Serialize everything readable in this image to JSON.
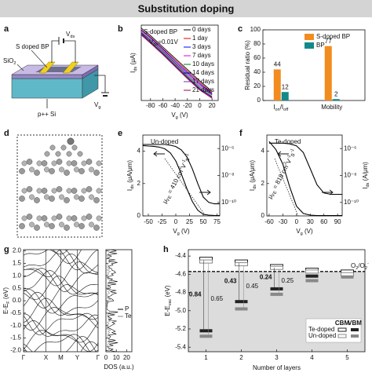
{
  "title": "Substitution doping",
  "panel_labels": [
    "a",
    "b",
    "c",
    "d",
    "e",
    "f",
    "g",
    "h"
  ],
  "a": {
    "doped": "S doped BP",
    "oxide": [
      "SiO",
      {
        "sub": "2"
      }
    ],
    "substrate": "p++ Si",
    "vds": [
      "V",
      {
        "sub": "ds"
      }
    ],
    "vg": [
      "V",
      {
        "sub": "g"
      }
    ]
  },
  "chart_data": [
    {
      "type": "line",
      "x": [
        -95,
        -80,
        -60,
        -40,
        -20,
        0,
        20
      ],
      "xlim": [
        -95,
        30
      ],
      "xticks": [
        -80,
        -60,
        -40,
        -20,
        0,
        20
      ],
      "ylim": [
        0,
        10
      ],
      "xlabel": [
        "V",
        {
          "sub": "g"
        },
        " (V)"
      ],
      "ylabel": [
        "I",
        {
          "sub": "ds"
        },
        " (μA)"
      ],
      "annotations": [
        "S-doped BP",
        [
          "V",
          {
            "sub": "ds"
          },
          "=0.01V"
        ]
      ],
      "series": [
        {
          "name": "0 days",
          "color": "#000000",
          "values": [
            9.6,
            8.6,
            7.1,
            5.6,
            4.1,
            2.6,
            1.2
          ]
        },
        {
          "name": "1 day",
          "color": "#e00000",
          "values": [
            9.4,
            8.4,
            6.9,
            5.4,
            3.9,
            2.4,
            1.0
          ]
        },
        {
          "name": "3 days",
          "color": "#0000ff",
          "values": [
            9.3,
            8.3,
            6.8,
            5.2,
            3.7,
            2.2,
            0.9
          ]
        },
        {
          "name": "7 days",
          "color": "#e000e0",
          "values": [
            9.1,
            8.1,
            6.6,
            5.0,
            3.5,
            2.0,
            0.8
          ]
        },
        {
          "name": "10 days",
          "color": "#008000",
          "values": [
            9.0,
            8.0,
            6.5,
            4.9,
            3.3,
            1.8,
            0.7
          ]
        },
        {
          "name": "14 days",
          "color": "#000080",
          "values": [
            8.9,
            7.8,
            6.3,
            4.7,
            3.1,
            1.6,
            0.5
          ]
        },
        {
          "name": "17 days",
          "color": "#7030a0",
          "values": [
            8.8,
            7.7,
            6.2,
            4.6,
            3.0,
            1.5,
            0.4
          ]
        },
        {
          "name": "21 days",
          "color": "#a0003a",
          "values": [
            8.7,
            7.6,
            6.1,
            4.5,
            2.9,
            1.4,
            0.3
          ]
        }
      ]
    },
    {
      "type": "bar",
      "categories": [
        [
          "I",
          {
            "sub": "on"
          },
          "/I",
          {
            "sub": "off"
          }
        ],
        "Mobility"
      ],
      "ylim": [
        0,
        100
      ],
      "yticks": [
        0,
        20,
        40,
        60,
        80,
        100
      ],
      "ylabel": "Residual ratio (%)",
      "series": [
        {
          "name": "S-doped BP",
          "color": "#f28c1e",
          "values": [
            44,
            77
          ]
        },
        {
          "name": "BP",
          "color": "#138a8a",
          "values": [
            12,
            2
          ]
        }
      ]
    },
    {
      "type": "transfer",
      "annotation": "Un-doped",
      "mobility": [
        "μ",
        {
          "sub": "FE"
        },
        " = 410 cm",
        {
          "sup": "2"
        },
        "V",
        {
          "sup": "-1"
        },
        "s",
        {
          "sup": "-1"
        }
      ],
      "x": [
        -60,
        -50,
        -40,
        -30,
        -20,
        -10,
        0,
        10,
        20,
        30,
        40,
        50,
        60,
        70,
        80
      ],
      "xlim": [
        -60,
        80
      ],
      "xticks": [
        -50,
        -25,
        0,
        25,
        50,
        75
      ],
      "ylim": [
        0,
        5
      ],
      "yticks": [
        0,
        2,
        4
      ],
      "y2lim": [
        -11,
        -5
      ],
      "y2ticks": [
        {
          "value": -6,
          "label": "10⁻⁶"
        },
        {
          "value": -8,
          "label": "10⁻⁸"
        },
        {
          "value": -10,
          "label": "10⁻¹⁰"
        }
      ],
      "xlabel": [
        "V",
        {
          "sub": "g"
        },
        " (V)"
      ],
      "ylabel": [
        "I",
        {
          "sub": "ds"
        },
        " (μA/μm)"
      ],
      "series": [
        {
          "color": "#000000",
          "values": [
            4.35,
            4.32,
            4.3,
            4.25,
            4.15,
            3.9,
            3.4,
            2.6,
            1.7,
            0.9,
            0.35,
            0.1,
            0.05,
            0.03,
            0.02
          ]
        },
        {
          "color": "#000000",
          "axis": "y2",
          "values": [
            -5.7,
            -5.7,
            -5.7,
            -5.7,
            -5.7,
            -5.75,
            -5.85,
            -6.1,
            -6.6,
            -7.5,
            -8.6,
            -9.6,
            -10.0,
            -10.1,
            -10.1
          ]
        }
      ]
    },
    {
      "type": "transfer",
      "annotation": "Te-doped",
      "mobility": [
        "μ",
        {
          "sub": "FE"
        },
        " = 818 cm",
        {
          "sup": "2"
        },
        "V",
        {
          "sup": "-1"
        },
        "s",
        {
          "sup": "-1"
        }
      ],
      "x": [
        -60,
        -45,
        -30,
        -15,
        0,
        15,
        30,
        45,
        60,
        75,
        90,
        100
      ],
      "xlim": [
        -65,
        100
      ],
      "xticks": [
        -60,
        -30,
        0,
        30,
        60,
        90
      ],
      "ylim": [
        0,
        5
      ],
      "yticks": [
        0,
        2,
        4
      ],
      "y2lim": [
        -11,
        -5
      ],
      "y2ticks": [
        {
          "value": -6,
          "label": "10⁻⁶"
        },
        {
          "value": -8,
          "label": "10⁻⁸"
        },
        {
          "value": -10,
          "label": "10⁻¹⁰"
        }
      ],
      "xlabel": [
        "V",
        {
          "sub": "g"
        },
        " (V)"
      ],
      "ylabel": [
        "I",
        {
          "sub": "ds"
        },
        " (μA/μm)"
      ],
      "y2label": [
        "I",
        {
          "sub": "ds"
        },
        " (A/μm)"
      ],
      "series": [
        {
          "color": "#000000",
          "values": [
            4.6,
            4.1,
            3.2,
            1.8,
            0.6,
            0.15,
            0.05,
            0.02,
            0.02,
            0.02,
            0.02,
            0.02
          ]
        },
        {
          "color": "#000000",
          "axis": "y2",
          "values": [
            -5.6,
            -5.6,
            -5.6,
            -5.65,
            -5.8,
            -6.3,
            -7.5,
            -8.7,
            -9.3,
            -9.4,
            -9.4,
            -9.4
          ]
        }
      ]
    },
    {
      "type": "band",
      "kpoints": [
        "Γ",
        "X",
        "M",
        "Y",
        "Γ"
      ],
      "ylim": [
        -2.05,
        2.05
      ],
      "yticks": [
        {
          "value": -2,
          "label": "-2.0"
        },
        {
          "value": -1.5,
          "label": "-1.5"
        },
        {
          "value": -1,
          "label": "-1.0"
        },
        {
          "value": -0.5,
          "label": "-0.5"
        },
        {
          "value": 0,
          "label": "0.0"
        },
        {
          "value": 0.5,
          "label": "0.5"
        },
        {
          "value": 1,
          "label": "1.0"
        },
        {
          "value": 1.5,
          "label": "1.5"
        },
        {
          "value": 2,
          "label": "2.0"
        }
      ],
      "ylabel": [
        "E-E",
        {
          "sub": "F"
        },
        " (eV)"
      ],
      "dos_xlim": [
        0,
        25
      ],
      "dos_xticks": [
        0,
        10,
        20
      ],
      "dos_xlabel": "DOS (a.u.)",
      "dos_series": [
        {
          "name": "P",
          "color": "#000000"
        },
        {
          "name": "Te",
          "color": "#888888"
        }
      ]
    },
    {
      "type": "levels",
      "xlim": [
        0.5,
        5.5
      ],
      "xticks": [
        1,
        2,
        3,
        4,
        5
      ],
      "ylim": [
        -5.45,
        -4.33
      ],
      "yticks": [
        -4.4,
        -4.6,
        -4.8,
        {
          "value": -5,
          "label": "-5.0"
        },
        -5.2,
        -5.4
      ],
      "xlabel": "Number of layers",
      "ylabel": [
        "E-E",
        {
          "sub": "vac"
        },
        " (eV)"
      ],
      "redox": {
        "value": -4.57,
        "label": [
          "O",
          {
            "sub": "2"
          },
          "/O",
          {
            "sub": "2"
          },
          {
            "sup": "-"
          }
        ]
      },
      "legend_columns": [
        "CBM",
        "VBM"
      ],
      "series": [
        {
          "name": "Te-doped",
          "color": "#222222",
          "CBM": [
            -4.43,
            -4.46,
            -4.51,
            -4.55,
            -4.57
          ],
          "VBM": [
            -5.22,
            -4.9,
            -4.76,
            -4.62,
            -4.6
          ]
        },
        {
          "name": "Un-doped",
          "color": "#888888",
          "CBM": [
            -4.46,
            -4.49,
            -4.53,
            -4.57,
            -4.6
          ],
          "VBM": [
            -5.28,
            -4.98,
            -4.82,
            -4.67,
            -4.63
          ]
        }
      ],
      "gap_labels": [
        [
          0.84,
          0.65
        ],
        [
          0.43,
          0.45
        ],
        [
          0.24,
          0.25
        ]
      ]
    }
  ]
}
